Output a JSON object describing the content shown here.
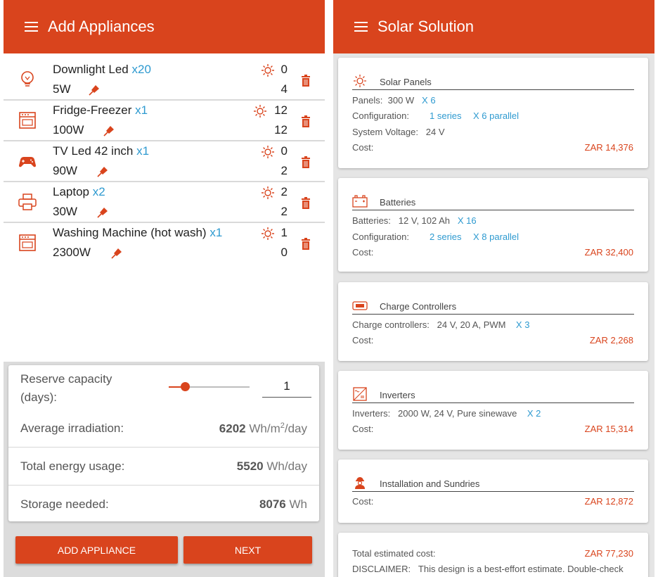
{
  "left": {
    "title": "Add Appliances",
    "appliances": [
      {
        "name": "Downlight Led",
        "qty": "x20",
        "power": "5W",
        "day": "0",
        "night": "4"
      },
      {
        "name": "Fridge-Freezer",
        "qty": "x1",
        "power": "100W",
        "day": "12",
        "night": "12"
      },
      {
        "name": "TV Led 42 inch",
        "qty": "x1",
        "power": "90W",
        "day": "0",
        "night": "2"
      },
      {
        "name": "Laptop",
        "qty": "x2",
        "power": "30W",
        "day": "2",
        "night": "2"
      },
      {
        "name": "Washing Machine (hot wash)",
        "qty": "x1",
        "power": "2300W",
        "day": "1",
        "night": "0"
      }
    ],
    "summary": {
      "reserve_label_1": "Reserve capacity",
      "reserve_label_2": "(days):",
      "reserve_value": "1",
      "reserve_slider_fraction": 0.2,
      "irradiation_label": "Average irradiation:",
      "irradiation_value": "6202",
      "irradiation_unit_pre": "Wh/m",
      "irradiation_unit_sup": "2",
      "irradiation_unit_post": "/day",
      "energy_label": "Total energy usage:",
      "energy_value": "5520",
      "energy_unit": "Wh/day",
      "storage_label": "Storage needed:",
      "storage_value": "8076",
      "storage_unit": "Wh"
    },
    "buttons": {
      "add": "ADD APPLIANCE",
      "next": "NEXT"
    }
  },
  "right": {
    "title": "Solar Solution",
    "panels": {
      "title": "Solar Panels",
      "panels_key": "Panels:",
      "panels_val": "300 W",
      "panels_mult": "X 6",
      "config_key": "Configuration:",
      "config_series": "1 series",
      "config_parallel": "X 6 parallel",
      "voltage_key": "System Voltage:",
      "voltage_val": "24 V",
      "cost_key": "Cost:",
      "cost_val": "ZAR 14,376"
    },
    "batteries": {
      "title": "Batteries",
      "batt_key": "Batteries:",
      "batt_val": "12 V, 102 Ah",
      "batt_mult": "X 16",
      "config_key": "Configuration:",
      "config_series": "2 series",
      "config_parallel": "X 8 parallel",
      "cost_key": "Cost:",
      "cost_val": "ZAR 32,400"
    },
    "controllers": {
      "title": "Charge Controllers",
      "cc_key": "Charge controllers:",
      "cc_val": "24 V, 20 A, PWM",
      "cc_mult": "X 3",
      "cost_key": "Cost:",
      "cost_val": "ZAR 2,268"
    },
    "inverters": {
      "title": "Inverters",
      "inv_key": "Inverters:",
      "inv_val": "2000 W, 24 V, Pure sinewave",
      "inv_mult": "X 2",
      "cost_key": "Cost:",
      "cost_val": "ZAR 15,314"
    },
    "installation": {
      "title": "Installation and Sundries",
      "cost_key": "Cost:",
      "cost_val": "ZAR 12,872"
    },
    "total": {
      "key": "Total estimated cost:",
      "val": "ZAR 77,230",
      "disclaimer_key": "DISCLAIMER:",
      "disclaimer_text": "This design is a best-effort estimate. Double-check"
    }
  },
  "colors": {
    "accent": "#d9441d",
    "link": "#2e9ad0"
  }
}
